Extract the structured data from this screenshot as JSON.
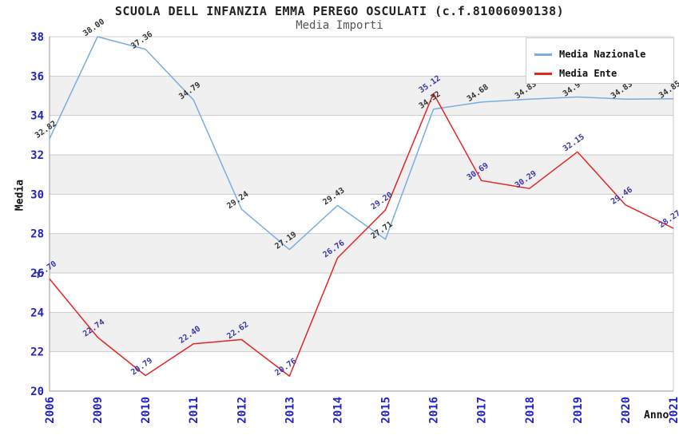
{
  "title": "SCUOLA DELL INFANZIA EMMA PEREGO OSCULATI (c.f.81006090138)",
  "subtitle": "Media Importi",
  "chart_data": {
    "type": "line",
    "categories": [
      "2006",
      "2009",
      "2010",
      "2011",
      "2012",
      "2013",
      "2014",
      "2015",
      "2016",
      "2017",
      "2018",
      "2019",
      "2020",
      "2021"
    ],
    "series": [
      {
        "name": "Media Nazionale",
        "color": "#79ade2",
        "label_color": "#333333",
        "values": [
          32.82,
          38.0,
          37.36,
          34.79,
          29.24,
          27.19,
          29.43,
          27.71,
          34.32,
          34.68,
          34.83,
          34.94,
          34.83,
          34.85
        ]
      },
      {
        "name": "Media Ente",
        "color": "#e62424",
        "label_color": "#3838aa",
        "values": [
          25.7,
          22.74,
          20.79,
          22.4,
          22.62,
          20.76,
          26.76,
          29.2,
          35.12,
          30.69,
          30.29,
          32.15,
          29.46,
          28.27
        ]
      }
    ],
    "xlabel": "Anno",
    "ylabel": "Media",
    "ylim": [
      20,
      38
    ],
    "ytick_step": 2,
    "grid": true,
    "legend_position": "top-right",
    "data_labels": true
  },
  "style": {
    "tick_label_color": "#2222cc",
    "grid_color": "#cccccc",
    "band_color": "#f0f0f0",
    "axis_color": "#999999",
    "plot_border_color": "#cccccc"
  }
}
